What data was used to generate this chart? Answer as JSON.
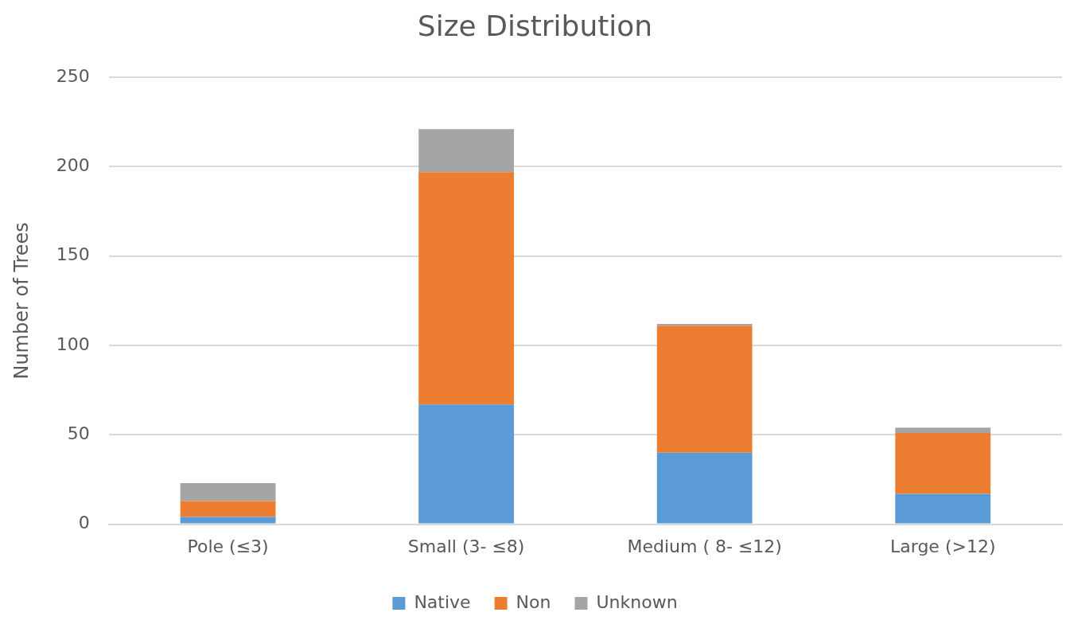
{
  "chart_data": {
    "type": "bar",
    "title": "Size Distribution",
    "ylabel": "Number of Trees",
    "categories": [
      "Pole (≤3)",
      "Small (3- ≤8)",
      "Medium ( 8- ≤12)",
      "Large (>12)"
    ],
    "series": [
      {
        "name": "Native",
        "color": "#5b9bd5",
        "values": [
          4,
          67,
          40,
          17
        ]
      },
      {
        "name": "Non",
        "color": "#ed7d31",
        "values": [
          9,
          130,
          71,
          34
        ]
      },
      {
        "name": "Unknown",
        "color": "#a5a5a5",
        "values": [
          10,
          24,
          1,
          3
        ]
      }
    ],
    "stacked": true,
    "ylim": [
      0,
      250
    ],
    "yticks": [
      0,
      50,
      100,
      150,
      200,
      250
    ],
    "grid": "y",
    "legend": "bottom"
  }
}
